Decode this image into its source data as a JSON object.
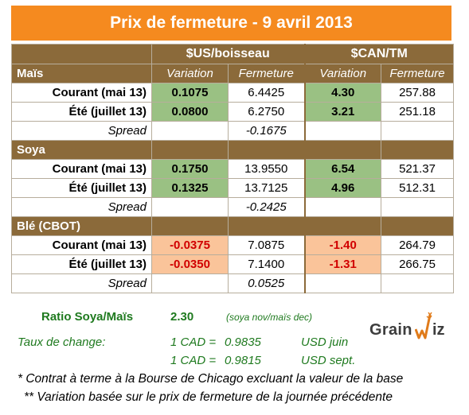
{
  "title": "Prix de fermeture - 9 avril 2013",
  "units": {
    "usd": "$US/boisseau",
    "cad": "$CAN/TM"
  },
  "columns": {
    "variation": "Variation",
    "fermeture": "Fermeture"
  },
  "sections": [
    {
      "name": "Maïs",
      "rows": [
        {
          "label": "Courant (mai 13)",
          "us_var": "0.1075",
          "us_close": "6.4425",
          "cad_var": "4.30",
          "cad_close": "257.88"
        },
        {
          "label": "Été (juillet 13)",
          "us_var": "0.0800",
          "us_close": "6.2750",
          "cad_var": "3.21",
          "cad_close": "251.18"
        }
      ],
      "spread_label": "Spread",
      "spread": "-0.1675"
    },
    {
      "name": "Soya",
      "rows": [
        {
          "label": "Courant (mai 13)",
          "us_var": "0.1750",
          "us_close": "13.9550",
          "cad_var": "6.54",
          "cad_close": "521.37"
        },
        {
          "label": "Été (juillet 13)",
          "us_var": "0.1325",
          "us_close": "13.7125",
          "cad_var": "4.96",
          "cad_close": "512.31"
        }
      ],
      "spread_label": "Spread",
      "spread": "-0.2425"
    },
    {
      "name": "Blé (CBOT)",
      "rows": [
        {
          "label": "Courant (mai 13)",
          "us_var": "-0.0375",
          "us_close": "7.0875",
          "cad_var": "-1.40",
          "cad_close": "264.79"
        },
        {
          "label": "Été (juillet 13)",
          "us_var": "-0.0350",
          "us_close": "7.1400",
          "cad_var": "-1.31",
          "cad_close": "266.75"
        }
      ],
      "spread_label": "Spread",
      "spread": "0.0525"
    }
  ],
  "ratio": {
    "label": "Ratio Soya/Maïs",
    "value": "2.30",
    "note": "(soya nov/maïs dec)"
  },
  "exchange": {
    "label": "Taux de change:",
    "rows": [
      {
        "cad": "1 CAD =",
        "rate": "0.9835",
        "usd": "USD juin"
      },
      {
        "cad": "1 CAD =",
        "rate": "0.9815",
        "usd": "USD sept."
      }
    ]
  },
  "footnotes": [
    "* Contrat à terme à la Bourse de Chicago excluant la valeur de la base",
    "** Variation basée sur le prix de fermeture de la journée précédente"
  ],
  "logo": {
    "text_left": "Grain",
    "text_right": "iz",
    "icon": "grainwiz-wheat-zigzag-icon"
  },
  "colors": {
    "banner": "#f58a1f",
    "header_brown": "#8b6a3a",
    "positive_fill": "#9ac183",
    "negative_fill": "#fac49a",
    "negative_text": "#d10000",
    "green_text": "#1f7a1f"
  }
}
